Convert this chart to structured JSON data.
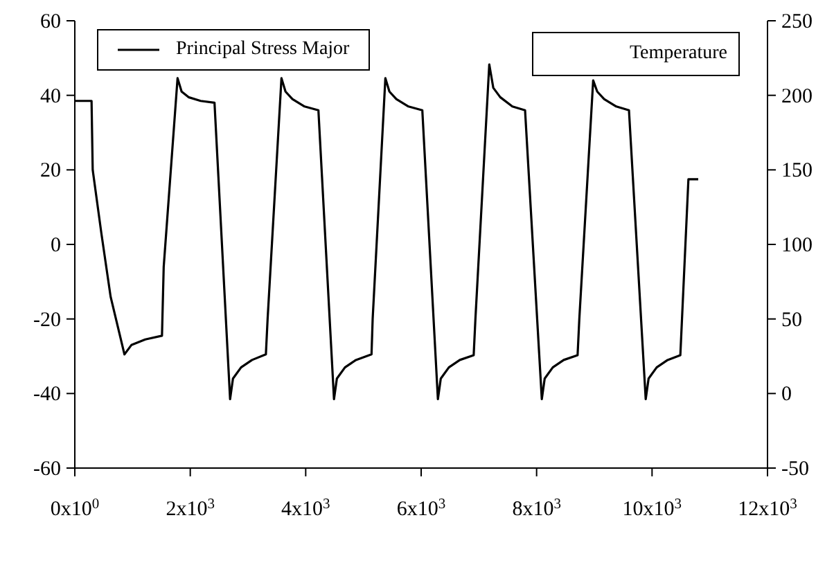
{
  "chart_data": {
    "type": "line",
    "xlim": [
      0,
      12000
    ],
    "xticks": [
      {
        "value": 0,
        "label": "0x10$^{0}$"
      },
      {
        "value": 2000,
        "label": "2x10$^{3}$"
      },
      {
        "value": 4000,
        "label": "4x10$^{3}$"
      },
      {
        "value": 6000,
        "label": "6x10$^{3}$"
      },
      {
        "value": 8000,
        "label": "8x10$^{3}$"
      },
      {
        "value": 10000,
        "label": "10x10$^{3}$"
      },
      {
        "value": 12000,
        "label": "12x10$^{3}$"
      }
    ],
    "ylim": [
      -60,
      60
    ],
    "yticks": [
      -60,
      -40,
      -20,
      0,
      20,
      40,
      60
    ],
    "y2lim": [
      -50,
      250
    ],
    "y2ticks": [
      -50,
      0,
      50,
      100,
      150,
      200,
      250
    ],
    "grid": false,
    "legend": "top left",
    "marker": "none",
    "line_style": "solid",
    "annotations": [
      "Temperature"
    ],
    "series": [
      {
        "name": "Principal Stress Major",
        "color": "#000000",
        "x": [
          0,
          290,
          310,
          460,
          620,
          860,
          980,
          1220,
          1510,
          1540,
          1780,
          1850,
          1970,
          2180,
          2420,
          2690,
          2740,
          2880,
          3070,
          3310,
          3340,
          3580,
          3650,
          3770,
          3980,
          4220,
          4490,
          4540,
          4680,
          4870,
          5140,
          5160,
          5380,
          5450,
          5570,
          5780,
          6020,
          6290,
          6340,
          6480,
          6670,
          6910,
          6940,
          7180,
          7250,
          7370,
          7580,
          7800,
          8090,
          8140,
          8280,
          8470,
          8710,
          8740,
          8980,
          9050,
          9170,
          9380,
          9600,
          9890,
          9940,
          10080,
          10270,
          10490,
          10630,
          10800
        ],
        "values": [
          38.5,
          38.5,
          20,
          3,
          -14,
          -29.5,
          -27,
          -25.5,
          -24.5,
          -6,
          44.6,
          41,
          39.5,
          38.5,
          38,
          -41.5,
          -36,
          -33,
          -31,
          -29.5,
          -20,
          44.6,
          41,
          39,
          37,
          36,
          -41.5,
          -36,
          -33,
          -31,
          -29.5,
          -20,
          44.6,
          41,
          39,
          37,
          36,
          -41.5,
          -36,
          -33,
          -31,
          -29.7,
          -20,
          48.3,
          42,
          39.5,
          37,
          36,
          -41.5,
          -36,
          -33,
          -31,
          -29.7,
          -20,
          44,
          41,
          39,
          37,
          36,
          -41.5,
          -36,
          -33,
          -31,
          -29.7,
          17.5,
          17.5
        ]
      }
    ]
  }
}
